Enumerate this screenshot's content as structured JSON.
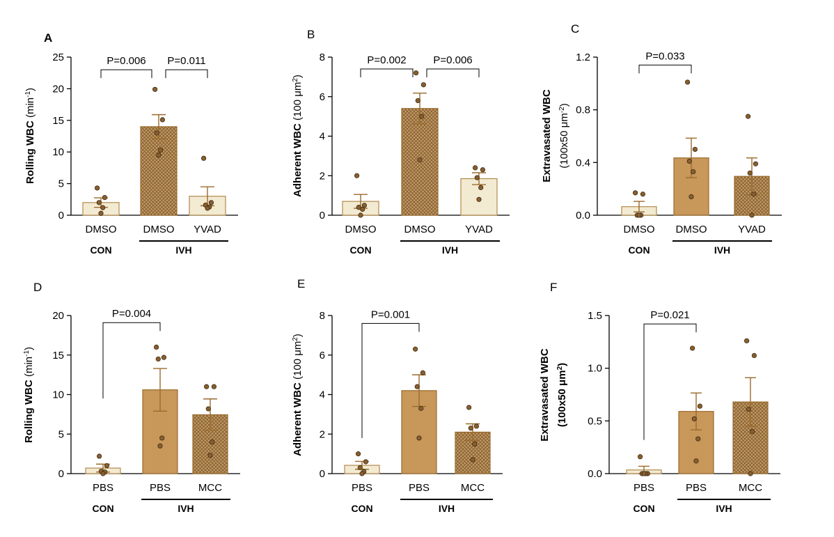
{
  "colors": {
    "light_fill": "#f3ead2",
    "light_stroke": "#b08a4a",
    "dark_fill": "#c8975a",
    "dark_stroke": "#9a6a2c",
    "hatch_line": "#8a6a3c",
    "dot_fill": "#8a5f2e",
    "dot_stroke": "#3a2a14",
    "err_stroke": "#9a6a2c"
  },
  "chart_data": [
    {
      "panel": "A",
      "type": "bar",
      "ylabel_main": "Rolling WBC",
      "ylabel_unit": "(min",
      "ylabel_sup": "-1",
      "ylabel_tail": ")",
      "ylim": [
        0,
        25
      ],
      "yticks": [
        {
          "v": 0,
          "label": "0"
        },
        {
          "v": 5,
          "label": "5"
        },
        {
          "v": 10,
          "label": "10"
        },
        {
          "v": 15,
          "label": "15"
        },
        {
          "v": 20,
          "label": "20"
        },
        {
          "v": 25,
          "label": "25"
        }
      ],
      "categories": [
        "DMSO",
        "DMSO",
        "YVAD"
      ],
      "group_left": "CON",
      "group_right": "IVH",
      "bars": [
        {
          "value": 2.0,
          "sem": 0.75,
          "style": "light",
          "points": [
            4.3,
            2.8,
            2.0,
            1.2,
            0.3
          ]
        },
        {
          "value": 14.0,
          "sem": 1.9,
          "style": "dark_hatch",
          "points": [
            19.9,
            15.1,
            13.0,
            10.3,
            9.5
          ]
        },
        {
          "value": 3.0,
          "sem": 1.5,
          "style": "light",
          "points": [
            9.0,
            2.0,
            1.6,
            1.3,
            1.1
          ]
        }
      ],
      "comparisons": [
        {
          "from": 0,
          "to": 1,
          "label": "P=0.006",
          "y": 23.0
        },
        {
          "from": 1,
          "to": 2,
          "label": "P=0.011",
          "y": 23.0
        }
      ]
    },
    {
      "panel": "B",
      "type": "bar",
      "ylabel_main": "Adherent WBC",
      "ylabel_unit": "(100 μm",
      "ylabel_sup": "2",
      "ylabel_tail": ")",
      "ylim": [
        0,
        8
      ],
      "yticks": [
        {
          "v": 0,
          "label": "0"
        },
        {
          "v": 2,
          "label": "2"
        },
        {
          "v": 4,
          "label": "4"
        },
        {
          "v": 6,
          "label": "6"
        },
        {
          "v": 8,
          "label": "8"
        }
      ],
      "categories": [
        "DMSO",
        "DMSO",
        "YVAD"
      ],
      "group_left": "CON",
      "group_right": "IVH",
      "bars": [
        {
          "value": 0.7,
          "sem": 0.35,
          "style": "light",
          "points": [
            2.0,
            0.5,
            0.4,
            0.3,
            0.0
          ]
        },
        {
          "value": 5.4,
          "sem": 0.78,
          "style": "dark_hatch",
          "points": [
            7.2,
            6.6,
            5.8,
            5.0,
            2.8
          ]
        },
        {
          "value": 1.85,
          "sem": 0.3,
          "style": "light",
          "points": [
            2.4,
            2.3,
            1.9,
            1.4,
            0.8
          ]
        }
      ],
      "comparisons": [
        {
          "from": 0,
          "to": 1,
          "label": "P=0.002",
          "y": 7.4
        },
        {
          "from": 1,
          "to": 2,
          "label": "P=0.006",
          "y": 7.4
        }
      ]
    },
    {
      "panel": "C",
      "type": "bar",
      "ylabel_main": "Extravasated WBC",
      "ylabel_unit": "(100x50 μm",
      "ylabel_sup": "-2",
      "ylabel_tail": ")",
      "ylim": [
        0,
        1.2
      ],
      "yticks": [
        {
          "v": 0,
          "label": "0.0"
        },
        {
          "v": 0.4,
          "label": "0.4"
        },
        {
          "v": 0.8,
          "label": "0.8"
        },
        {
          "v": 1.2,
          "label": "1.2"
        }
      ],
      "categories": [
        "DMSO",
        "DMSO",
        "YVAD"
      ],
      "group_left": "CON",
      "group_right": "IVH",
      "bars": [
        {
          "value": 0.065,
          "sem": 0.04,
          "style": "light",
          "points": [
            0.17,
            0.16,
            0.0,
            0.0,
            0.0
          ]
        },
        {
          "value": 0.435,
          "sem": 0.15,
          "style": "dark",
          "points": [
            1.01,
            0.5,
            0.41,
            0.33,
            0.14
          ]
        },
        {
          "value": 0.295,
          "sem": 0.14,
          "style": "dark_hatch",
          "points": [
            0.75,
            0.39,
            0.32,
            0.16,
            0.0
          ]
        }
      ],
      "comparisons": [
        {
          "from": 0,
          "to": 1,
          "label": "P=0.033",
          "y": 1.14
        }
      ]
    },
    {
      "panel": "D",
      "type": "bar",
      "ylabel_main": "Rolling WBC",
      "ylabel_unit": "(min",
      "ylabel_sup": "-1",
      "ylabel_tail": ")",
      "ylim": [
        0,
        20
      ],
      "yticks": [
        {
          "v": 0,
          "label": "0"
        },
        {
          "v": 5,
          "label": "5"
        },
        {
          "v": 10,
          "label": "10"
        },
        {
          "v": 15,
          "label": "15"
        },
        {
          "v": 20,
          "label": "20"
        }
      ],
      "categories": [
        "PBS",
        "PBS",
        "MCC"
      ],
      "group_left": "CON",
      "group_right": "IVH",
      "bars": [
        {
          "value": 0.7,
          "sem": 0.5,
          "style": "light",
          "points": [
            2.2,
            1.0,
            0.3,
            0.2,
            0.0
          ]
        },
        {
          "value": 10.6,
          "sem": 2.7,
          "style": "dark",
          "points": [
            16.0,
            14.7,
            14.5,
            4.5,
            3.5
          ]
        },
        {
          "value": 7.45,
          "sem": 2.0,
          "style": "dark_hatch",
          "points": [
            11.0,
            11.0,
            8.2,
            4.0,
            2.3
          ]
        }
      ],
      "comparisons": [
        {
          "from": 0,
          "to": 1,
          "label": "P=0.004",
          "y": 19.1,
          "left_drop_to": 9.5
        }
      ]
    },
    {
      "panel": "E",
      "type": "bar",
      "ylabel_main": "Adherent WBC",
      "ylabel_unit": "(100 μm",
      "ylabel_sup": "2",
      "ylabel_tail": ")",
      "ylim": [
        0,
        8
      ],
      "yticks": [
        {
          "v": 0,
          "label": "0"
        },
        {
          "v": 2,
          "label": "2"
        },
        {
          "v": 4,
          "label": "4"
        },
        {
          "v": 6,
          "label": "6"
        },
        {
          "v": 8,
          "label": "8"
        }
      ],
      "categories": [
        "PBS",
        "PBS",
        "MCC"
      ],
      "group_left": "CON",
      "group_right": "IVH",
      "bars": [
        {
          "value": 0.42,
          "sem": 0.2,
          "style": "light",
          "points": [
            1.0,
            0.6,
            0.3,
            0.1,
            0.0
          ]
        },
        {
          "value": 4.2,
          "sem": 0.8,
          "style": "dark",
          "points": [
            6.3,
            5.1,
            4.4,
            3.3,
            1.8
          ]
        },
        {
          "value": 2.1,
          "sem": 0.42,
          "style": "dark_hatch",
          "points": [
            3.35,
            2.4,
            2.3,
            1.5,
            0.7
          ]
        }
      ],
      "comparisons": [
        {
          "from": 0,
          "to": 1,
          "label": "P=0.001",
          "y": 7.6,
          "left_drop_to": 1.8
        }
      ]
    },
    {
      "panel": "F",
      "type": "bar",
      "ylabel_main": "Extravasated WBC",
      "ylabel_unit": "(100x50 μm",
      "ylabel_sup": "2",
      "ylabel_tail": ")",
      "ylim": [
        0,
        1.5
      ],
      "yticks": [
        {
          "v": 0,
          "label": "0.0"
        },
        {
          "v": 0.5,
          "label": "0.5"
        },
        {
          "v": 1.0,
          "label": "1.0"
        },
        {
          "v": 1.5,
          "label": "1.5"
        }
      ],
      "categories": [
        "PBS",
        "PBS",
        "MCC"
      ],
      "group_left": "CON",
      "group_right": "IVH",
      "bars": [
        {
          "value": 0.035,
          "sem": 0.035,
          "style": "light",
          "points": [
            0.16,
            0.0,
            0.0,
            0.0,
            0.0
          ]
        },
        {
          "value": 0.59,
          "sem": 0.175,
          "style": "dark",
          "points": [
            1.19,
            0.64,
            0.52,
            0.33,
            0.12
          ]
        },
        {
          "value": 0.68,
          "sem": 0.23,
          "style": "dark_hatch",
          "points": [
            1.26,
            1.12,
            0.61,
            0.4,
            0.0
          ]
        }
      ],
      "comparisons": [
        {
          "from": 0,
          "to": 1,
          "label": "P=0.021",
          "y": 1.42,
          "left_drop_to": 0.32
        }
      ]
    }
  ]
}
